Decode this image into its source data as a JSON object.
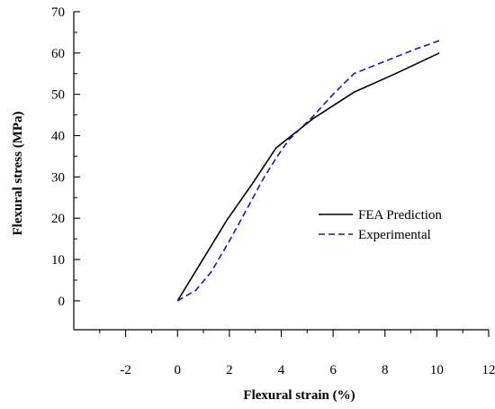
{
  "chart_data": {
    "type": "line",
    "title": "",
    "xlabel": "Flexural strain (%)",
    "ylabel": "Flexural stress (MPa)",
    "xlim": [
      -4,
      12
    ],
    "ylim": [
      -7,
      70
    ],
    "x_ticks": [
      -2,
      0,
      2,
      4,
      6,
      8,
      10,
      12
    ],
    "y_ticks": [
      0,
      10,
      20,
      30,
      40,
      50,
      60,
      70
    ],
    "x_tick_labels": [
      "-2",
      "0",
      "2",
      "4",
      "6",
      "8",
      "10",
      "12"
    ],
    "y_tick_labels": [
      "0",
      "10",
      "20",
      "30",
      "40",
      "50",
      "60",
      "70"
    ],
    "grid": false,
    "legend_position": "center-right",
    "series": [
      {
        "name": "FEA Prediction",
        "color": "#000000",
        "style": "solid",
        "x": [
          0,
          1.9,
          2.9,
          3.8,
          5.2,
          6.8,
          8.4,
          10.1
        ],
        "y": [
          0,
          19.5,
          28.5,
          37,
          44,
          50.5,
          55,
          60
        ]
      },
      {
        "name": "Experimental",
        "color": "#1a1aa8",
        "style": "dashed",
        "x": [
          0,
          0.7,
          1.3,
          2.0,
          2.7,
          3.3,
          3.8,
          4.3,
          5.2,
          6.0,
          6.8,
          7.6,
          8.4,
          9.2,
          10.1
        ],
        "y": [
          0,
          2.5,
          7,
          14.5,
          22.5,
          29.5,
          34.5,
          39,
          44.5,
          50,
          55,
          57,
          59,
          61,
          63
        ]
      }
    ]
  }
}
